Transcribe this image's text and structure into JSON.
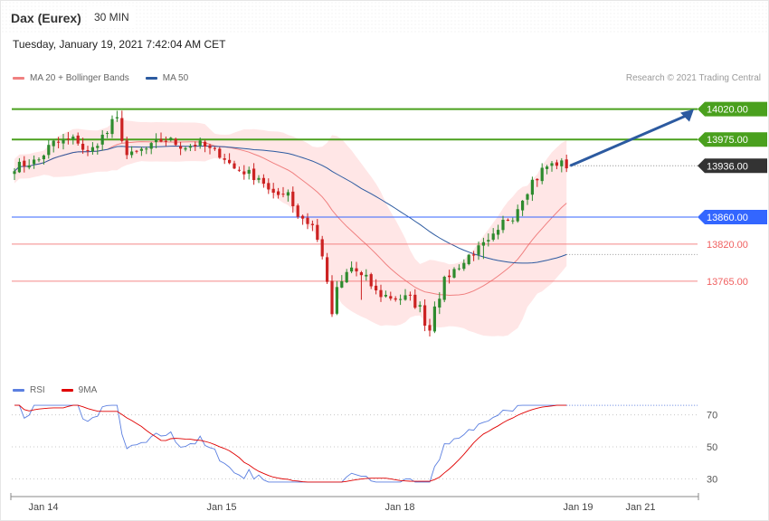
{
  "header": {
    "symbol": "Dax (Eurex)",
    "timeframe": "30 MIN",
    "timestamp": "Tuesday, January 19, 2021 7:42:04 AM CET"
  },
  "legend": {
    "main": [
      {
        "label": "MA 20 + Bollinger Bands",
        "color": "#f08080"
      },
      {
        "label": "MA 50",
        "color": "#2c5aa0"
      }
    ],
    "rsi": [
      {
        "label": "RSI",
        "color": "#5b7fe0"
      },
      {
        "label": "9MA",
        "color": "#e00000"
      }
    ]
  },
  "credit": "Research © 2021 Trading Central",
  "colors": {
    "bull": "#2e8b2e",
    "bear": "#cc2222",
    "resistance": "#4aa01e",
    "pivot": "#3366ff",
    "support": "#f06060",
    "last": "#333333",
    "band": "#ffdcdc",
    "arrow": "#2c5aa0"
  },
  "chart_data": [
    {
      "type": "candlestick",
      "x_ticks": [
        "Jan 14",
        "Jan 15",
        "Jan 18",
        "Jan 19",
        "Jan 21"
      ],
      "ylim": [
        13620,
        14045
      ],
      "levels": [
        {
          "value": 14020,
          "label": "14020.00",
          "kind": "resistance"
        },
        {
          "value": 13975,
          "label": "13975.00",
          "kind": "resistance"
        },
        {
          "value": 13936,
          "label": "13936.00",
          "kind": "last"
        },
        {
          "value": 13860,
          "label": "13860.00",
          "kind": "pivot"
        },
        {
          "value": 13820,
          "label": "13820.00",
          "kind": "support"
        },
        {
          "value": 13765,
          "label": "13765.00",
          "kind": "support"
        }
      ],
      "ma_last": {
        "ma20": 13895,
        "ma50": 13852
      },
      "forecast_target": 14020
    },
    {
      "type": "line",
      "name_series": [
        "RSI",
        "9MA"
      ],
      "yticks": [
        70,
        50,
        30
      ],
      "ylim": [
        20,
        80
      ]
    }
  ]
}
